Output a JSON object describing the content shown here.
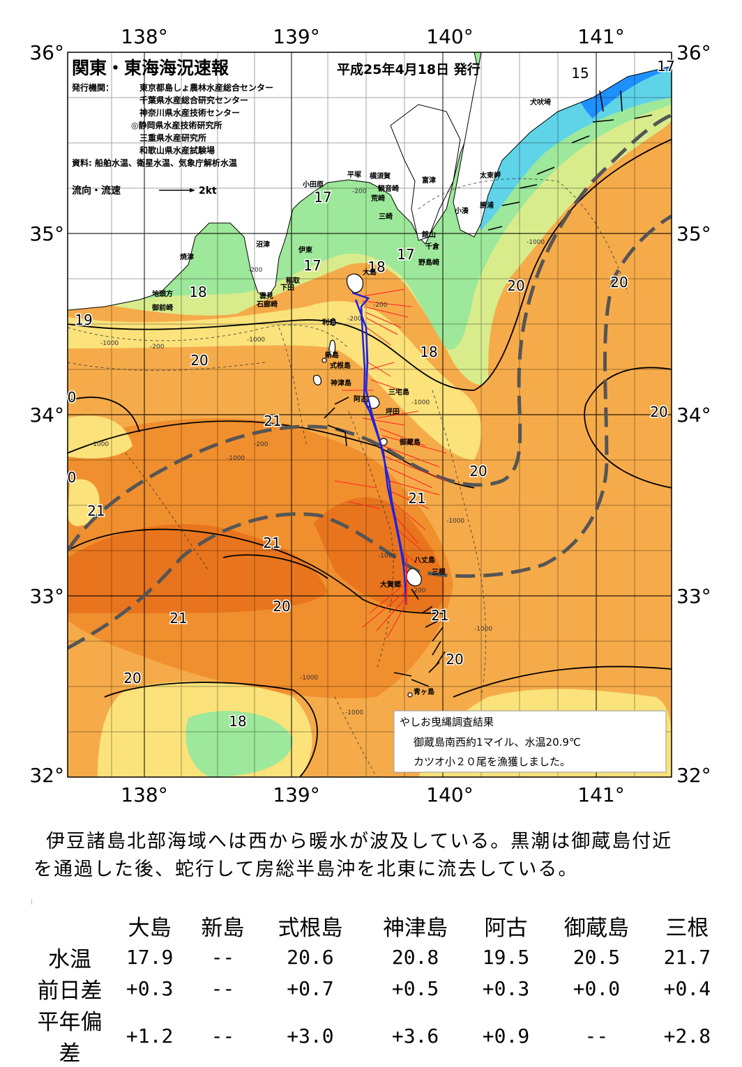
{
  "map": {
    "title": "関東・東海海況速報",
    "issue_date": "平成25年4月18日 発行",
    "publisher_label": "発行機関：",
    "publishers": [
      "東京都島しょ農林水産総合センター",
      "千葉県水産総合研究センター",
      "神奈川県水産技術センター",
      "◎静岡県水産技術研究所",
      "三重県水産研究所",
      "和歌山県水産試験場"
    ],
    "source": "資料: 船舶水温、衛星水温、気象庁解析水温",
    "legend_label": "流向・流速",
    "legend_speed": "2kt",
    "lon_labels": [
      "138°",
      "139°",
      "140°",
      "141°"
    ],
    "lat_labels": [
      "36°",
      "35°",
      "34°",
      "33°",
      "32°"
    ],
    "isotherm_labels": [
      "15",
      "17",
      "17",
      "17",
      "17",
      "18",
      "18",
      "18",
      "18",
      "19",
      "20",
      "20",
      "20",
      "20",
      "20",
      "20",
      "20",
      "21",
      "21",
      "21",
      "21",
      "21",
      "21",
      "0",
      "0"
    ],
    "place_labels": [
      "犬吠埼",
      "太東岬",
      "勝浦",
      "小湊",
      "富津",
      "横須賀",
      "観音崎",
      "平塚",
      "荒崎",
      "三崎",
      "小田原",
      "館山",
      "千倉",
      "野島崎",
      "沼津",
      "焼津",
      "伊東",
      "大島",
      "稲取",
      "下田",
      "雲見",
      "石廊崎",
      "地頭方",
      "御前崎",
      "利島",
      "新島",
      "式根島",
      "神津島",
      "三宅島",
      "阿古",
      "坪田",
      "御蔵島",
      "八丈島",
      "三根",
      "大賀郷",
      "青ヶ島"
    ],
    "depth_labels": [
      "-200",
      "-200",
      "-1000",
      "-200",
      "-1000",
      "-200",
      "-200",
      "-1000",
      "-1000",
      "-1000",
      "-1000",
      "-1000",
      "-200",
      "-200",
      "-1000",
      "-1000",
      "-1000",
      "-1000"
    ],
    "catch_note": [
      "やしお曳縄調査結果",
      "御蔵島南西約1マイル、水温20.9℃",
      "カツオ小２０尾を漁獲しました。"
    ],
    "colors": {
      "temp_15": "#1e90ff",
      "temp_16": "#5fd3e8",
      "temp_17": "#9de89a",
      "temp_18": "#d8ec8c",
      "temp_19": "#fbe27a",
      "temp_20": "#f6ab4a",
      "temp_21": "#f08f2e",
      "temp_22": "#e8751e",
      "kuroshio_axis": "#555555",
      "ship_track": "#2020e0",
      "current_vectors": "#ff2020"
    }
  },
  "summary": [
    "伊豆諸島北部海域へは西から暖水が波及している。黒潮は御蔵島付近",
    "を通過した後、蛇行して房総半島沖を北東に流去している。"
  ],
  "table": {
    "stations": [
      "大島",
      "新島",
      "式根島",
      "神津島",
      "阿古",
      "御蔵島",
      "三根"
    ],
    "rows": [
      {
        "label": "水温",
        "values": [
          "17.9",
          "--",
          "20.6",
          "20.8",
          "19.5",
          "20.5",
          "21.7"
        ]
      },
      {
        "label": "前日差",
        "values": [
          "+0.3",
          "--",
          "+0.7",
          "+0.5",
          "+0.3",
          "+0.0",
          "+0.4"
        ]
      },
      {
        "label": "平年偏差",
        "values": [
          "+1.2",
          "--",
          "+3.0",
          "+3.6",
          "+0.9",
          "--",
          "+2.8"
        ]
      }
    ]
  }
}
